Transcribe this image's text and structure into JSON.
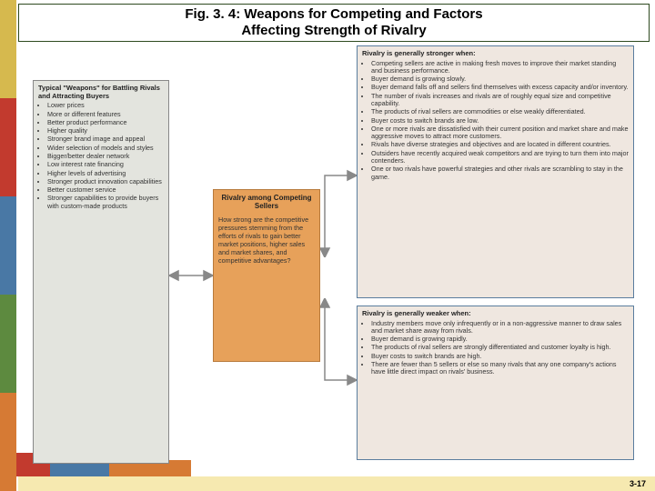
{
  "header": {
    "line1": "Fig. 3. 4:  Weapons for Competing and Factors",
    "line2": "Affecting Strength of Rivalry",
    "border_color": "#2e4a1f",
    "fontsize": 15
  },
  "left_stripe_colors": [
    "#d6b94e",
    "#c23a2e",
    "#4978a5",
    "#5d8a3f",
    "#d67a34"
  ],
  "weapons": {
    "title": "Typical \"Weapons\" for Battling Rivals and Attracting Buyers",
    "items": [
      "Lower prices",
      "More or different features",
      "Better product performance",
      "Higher quality",
      "Stronger brand image and appeal",
      "Wider selection of models and styles",
      "Bigger/better dealer network",
      "Low interest rate financing",
      "Higher levels of advertising",
      "Stronger product innovation capabilities",
      "Better customer service",
      "Stronger capabilities to provide buyers with custom-made products"
    ],
    "bg": "#e3e4de"
  },
  "center": {
    "title": "Rivalry among Competing Sellers",
    "text": "How strong are the competitive pressures stemming from the efforts of rivals to gain better market positions, higher sales and market shares, and competitive advantages?",
    "bg": "#e7a15a",
    "border": "#b87a3c"
  },
  "stronger": {
    "title": "Rivalry is generally stronger when:",
    "items": [
      "Competing sellers are active in making fresh moves to improve their market standing and business performance.",
      "Buyer demand is growing slowly.",
      "Buyer demand falls off and sellers find themselves with excess capacity and/or inventory.",
      "The number of rivals increases and rivals are of roughly equal size and competitive capability.",
      "The products of rival sellers are commodities or else weakly differentiated.",
      "Buyer costs to switch brands are low.",
      "One or more rivals are dissatisfied with their current position and market share and make aggressive moves to attract more customers.",
      "Rivals have diverse strategies and objectives and are located in different countries.",
      "Outsiders have recently acquired weak competitors and are trying to turn them into major contenders.",
      "One or two rivals have powerful strategies and other rivals are scrambling to stay in the game."
    ],
    "bg": "#efe7e0",
    "border": "#5a7d9e"
  },
  "weaker": {
    "title": "Rivalry is generally weaker when:",
    "items": [
      "Industry members move only infrequently or in a non-aggressive manner to draw sales and market share away from rivals.",
      "Buyer demand is growing rapidly.",
      "The products of rival sellers are strongly differentiated and customer loyalty is high.",
      "Buyer costs to switch brands are high.",
      "There are fewer than 5 sellers or else so many rivals that any one company's actions have little direct impact on rivals' business."
    ],
    "bg": "#efe7e0",
    "border": "#5a7d9e"
  },
  "footer": {
    "page": "3-17",
    "bg": "#f6e9b0"
  },
  "arrows": {
    "color": "#888888",
    "width": 1.5
  }
}
